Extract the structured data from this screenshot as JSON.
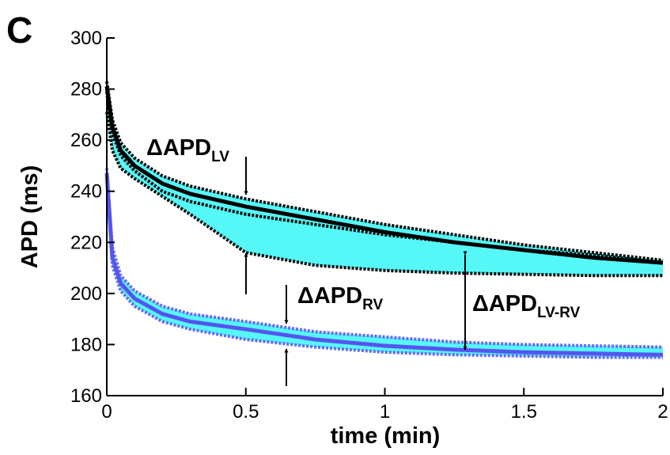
{
  "chart_data": {
    "type": "line",
    "panel_label": "C",
    "xlabel": "time (min)",
    "ylabel": "APD (ms)",
    "x": [
      0,
      0.02,
      0.05,
      0.1,
      0.2,
      0.3,
      0.5,
      0.75,
      1,
      1.25,
      1.5,
      1.75,
      2
    ],
    "xlim": [
      0,
      2
    ],
    "xticks": [
      0,
      0.5,
      1,
      1.5,
      2
    ],
    "ylim": [
      160,
      300
    ],
    "yticks": [
      160,
      180,
      200,
      220,
      240,
      260,
      280,
      300
    ],
    "bands": [
      {
        "color": "#55f7f7",
        "edge_color": "#000000",
        "upper": [
          283,
          268,
          259,
          253,
          246,
          242,
          237,
          232,
          227,
          223,
          219,
          216,
          213
        ],
        "lower": [
          271,
          256,
          249,
          245,
          238,
          231,
          216,
          211,
          209,
          208,
          207.5,
          207,
          207
        ]
      },
      {
        "color": "#55f7f7",
        "edge_color": "#6a6af0",
        "upper": [
          249,
          218,
          207,
          201,
          195,
          192,
          189,
          185,
          183,
          181,
          180,
          179.5,
          179
        ],
        "lower": [
          245,
          211,
          201,
          195,
          189,
          186,
          182,
          179,
          177,
          176,
          175.5,
          175,
          175
        ]
      }
    ],
    "series": [
      {
        "color": "#000000",
        "dashed": true,
        "values": [
          279,
          263,
          254,
          248,
          240,
          236,
          231,
          227,
          223,
          220,
          217,
          215,
          212
        ]
      },
      {
        "color": "#000000",
        "dashed": false,
        "values": [
          281,
          265,
          256,
          250,
          243,
          239,
          234,
          229,
          224,
          220,
          217,
          214,
          212
        ]
      },
      {
        "color": "#5555ee",
        "dashed": false,
        "values": [
          247,
          214,
          204,
          198,
          192,
          189,
          186,
          182,
          179.5,
          178,
          177,
          176.5,
          176
        ]
      }
    ],
    "annotations": [
      {
        "text": "ΔAPD",
        "sub": "LV"
      },
      {
        "text": "ΔAPD",
        "sub": "RV"
      },
      {
        "text": "ΔAPD",
        "sub": "LV-RV"
      }
    ]
  }
}
